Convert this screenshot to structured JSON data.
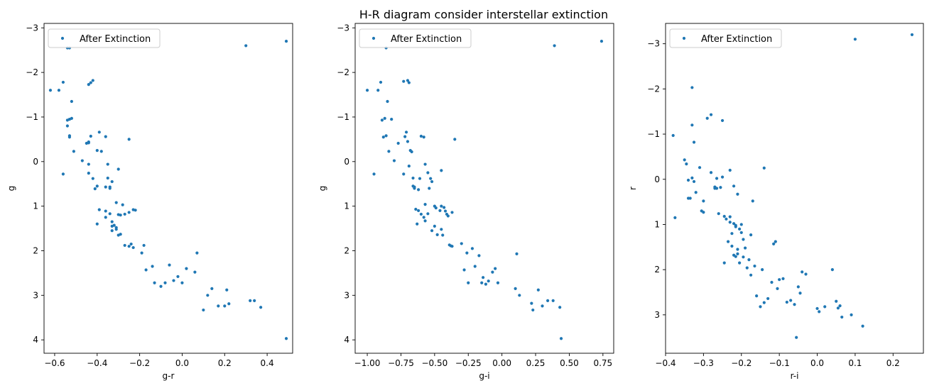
{
  "figure": {
    "title": "H-R diagram consider interstellar extinction"
  },
  "chart_data": [
    {
      "type": "scatter",
      "xlabel": "g-r",
      "ylabel": "g",
      "xlim": [
        -0.65,
        0.52
      ],
      "ylim": [
        4.3,
        -3.1
      ],
      "y_inverted": true,
      "xticks": [
        -0.6,
        -0.4,
        -0.2,
        0.0,
        0.2,
        0.4
      ],
      "xtick_labels": [
        "−0.6",
        "−0.4",
        "−0.2",
        "0.0",
        "0.2",
        "0.4"
      ],
      "yticks": [
        -3,
        -2,
        -1,
        0,
        1,
        2,
        3,
        4
      ],
      "ytick_labels": [
        "−3",
        "−2",
        "−1",
        "0",
        "1",
        "2",
        "3",
        "4"
      ],
      "legend": {
        "label": "After Extinction",
        "position": "upper left"
      },
      "color": "#1f77b4",
      "series": [
        {
          "name": "After Extinction",
          "x": [
            -0.62,
            -0.58,
            -0.56,
            -0.54,
            -0.53,
            -0.52,
            -0.54,
            -0.53,
            -0.52,
            -0.51,
            -0.56,
            -0.54,
            -0.53,
            -0.47,
            -0.45,
            -0.44,
            -0.44,
            -0.43,
            -0.44,
            -0.43,
            -0.42,
            -0.4,
            -0.39,
            -0.38,
            -0.36,
            -0.35,
            -0.34,
            -0.33,
            -0.3,
            -0.25,
            -0.44,
            -0.42,
            -0.4,
            -0.41,
            -0.4,
            -0.36,
            -0.34,
            -0.33,
            -0.31,
            -0.3,
            -0.39,
            -0.36,
            -0.35,
            -0.34,
            -0.36,
            -0.33,
            -0.32,
            -0.31,
            -0.29,
            -0.28,
            -0.27,
            -0.25,
            -0.23,
            -0.22,
            -0.33,
            -0.31,
            -0.3,
            -0.29,
            -0.27,
            -0.25,
            -0.24,
            -0.23,
            -0.19,
            -0.18,
            -0.17,
            -0.14,
            -0.13,
            -0.1,
            -0.08,
            -0.06,
            -0.04,
            -0.02,
            0.0,
            0.02,
            0.06,
            0.07,
            0.1,
            0.12,
            0.14,
            0.17,
            0.2,
            0.21,
            0.22,
            0.32,
            0.34,
            0.37,
            0.49,
            0.3,
            0.49,
            -0.53,
            -0.44
          ],
          "y": [
            -1.6,
            -1.6,
            -1.78,
            -0.93,
            -0.58,
            -0.97,
            -0.8,
            -0.55,
            -1.35,
            -0.23,
            0.28,
            -2.55,
            -0.95,
            -0.02,
            -0.41,
            0.06,
            -0.44,
            -0.57,
            -1.73,
            -1.77,
            -1.82,
            -0.25,
            -0.66,
            -0.23,
            -0.56,
            0.06,
            0.57,
            0.45,
            0.17,
            -0.5,
            0.26,
            0.38,
            0.55,
            0.61,
            1.4,
            1.11,
            1.17,
            1.35,
            0.92,
            1.19,
            1.08,
            1.25,
            0.37,
            0.6,
            0.57,
            1.45,
            1.43,
            1.48,
            1.2,
            0.97,
            1.18,
            1.14,
            1.08,
            1.09,
            1.55,
            1.52,
            1.65,
            1.63,
            1.88,
            1.9,
            1.85,
            1.93,
            2.05,
            1.88,
            2.43,
            2.35,
            2.72,
            2.8,
            2.72,
            2.32,
            2.67,
            2.58,
            2.72,
            2.4,
            2.48,
            2.05,
            3.33,
            3.0,
            2.85,
            3.24,
            3.24,
            2.88,
            3.19,
            3.12,
            3.12,
            3.27,
            3.97,
            -2.6,
            -2.7,
            -2.55,
            -0.42
          ]
        }
      ]
    },
    {
      "type": "scatter",
      "xlabel": "g-i",
      "ylabel": "g",
      "xlim": [
        -1.09,
        0.83
      ],
      "ylim": [
        4.3,
        -3.1
      ],
      "y_inverted": true,
      "xticks": [
        -1.0,
        -0.75,
        -0.5,
        -0.25,
        0.0,
        0.25,
        0.5,
        0.75
      ],
      "xtick_labels": [
        "−1.00",
        "−0.75",
        "−0.50",
        "−0.25",
        "0.00",
        "0.25",
        "0.50",
        "0.75"
      ],
      "yticks": [
        -3,
        -2,
        -1,
        0,
        1,
        2,
        3,
        4
      ],
      "ytick_labels": [
        "−3",
        "−2",
        "−1",
        "0",
        "1",
        "2",
        "3",
        "4"
      ],
      "legend": {
        "label": "After Extinction",
        "position": "upper left"
      },
      "color": "#1f77b4",
      "series": [
        {
          "name": "After Extinction",
          "x": [
            -1.0,
            -0.95,
            -0.92,
            -0.9,
            -0.89,
            -0.88,
            -0.87,
            -0.86,
            -0.85,
            -0.84,
            -0.82,
            -0.8,
            -0.77,
            -0.73,
            -0.72,
            -0.71,
            -0.7,
            -0.69,
            -0.68,
            -0.67,
            -0.66,
            -0.65,
            -0.62,
            -0.61,
            -0.58,
            -0.57,
            -0.55,
            -0.54,
            -0.53,
            -0.52,
            -0.5,
            -0.49,
            -0.48,
            -0.46,
            -0.45,
            -0.44,
            -0.43,
            -0.42,
            -0.41,
            -0.39,
            -0.38,
            -0.37,
            -0.35,
            -0.3,
            -0.28,
            -0.26,
            -0.25,
            -0.22,
            -0.2,
            -0.17,
            -0.15,
            -0.14,
            -0.12,
            -0.1,
            -0.07,
            -0.05,
            -0.03,
            0.1,
            0.11,
            0.13,
            0.22,
            0.23,
            0.27,
            0.3,
            0.34,
            0.38,
            0.43,
            0.44,
            0.39,
            0.74,
            -0.86,
            -0.73,
            -0.69,
            -0.7,
            -0.6,
            -0.55,
            -0.58,
            -0.52,
            -0.57,
            -0.6,
            -0.63,
            -0.64,
            -0.65,
            -0.66,
            -0.62,
            -0.57,
            -0.5,
            -0.45,
            -0.4,
            -0.37,
            -0.45
          ],
          "y": [
            -1.6,
            0.28,
            -1.6,
            -1.78,
            -0.93,
            -0.55,
            -0.97,
            -0.58,
            -1.35,
            -0.23,
            -0.95,
            -0.02,
            -0.41,
            0.28,
            -0.56,
            -0.66,
            -0.45,
            0.1,
            -0.25,
            -0.22,
            0.37,
            0.57,
            0.63,
            0.38,
            -0.55,
            0.06,
            0.25,
            0.6,
            0.38,
            0.45,
            1.0,
            1.04,
            1.64,
            1.1,
            1.0,
            1.65,
            1.03,
            1.11,
            1.18,
            1.87,
            1.89,
            1.14,
            -0.5,
            1.84,
            2.43,
            2.05,
            2.72,
            1.95,
            2.35,
            2.11,
            2.72,
            2.6,
            2.75,
            2.68,
            2.48,
            2.4,
            2.72,
            2.85,
            2.07,
            3.0,
            3.18,
            3.33,
            2.88,
            3.24,
            3.12,
            3.12,
            3.27,
            3.97,
            -2.6,
            -2.7,
            -2.55,
            -1.8,
            -1.77,
            -1.82,
            -0.57,
            1.17,
            1.25,
            1.55,
            1.33,
            1.18,
            1.4,
            1.07,
            0.6,
            0.55,
            1.1,
            0.96,
            1.45,
            1.52,
            1.22,
            1.9,
            0.2
          ]
        }
      ]
    },
    {
      "type": "scatter",
      "xlabel": "r-i",
      "ylabel": "r",
      "xlim": [
        -0.4,
        0.28
      ],
      "ylim": [
        3.85,
        -3.45
      ],
      "y_inverted": true,
      "xticks": [
        -0.4,
        -0.3,
        -0.2,
        -0.1,
        0.0,
        0.1,
        0.2
      ],
      "xtick_labels": [
        "−0.4",
        "−0.3",
        "−0.2",
        "−0.1",
        "0.0",
        "0.1",
        "0.2"
      ],
      "yticks": [
        -3,
        -2,
        -1,
        0,
        1,
        2,
        3
      ],
      "ytick_labels": [
        "−3",
        "−2",
        "−1",
        "0",
        "1",
        "2",
        "3"
      ],
      "legend": {
        "label": "After Extinction",
        "position": "upper left"
      },
      "color": "#1f77b4",
      "series": [
        {
          "name": "After Extinction",
          "x": [
            -0.38,
            -0.375,
            -0.35,
            -0.345,
            -0.34,
            -0.335,
            -0.33,
            -0.325,
            -0.32,
            -0.31,
            -0.305,
            -0.33,
            -0.33,
            -0.325,
            -0.3,
            -0.29,
            -0.28,
            -0.27,
            -0.265,
            -0.26,
            -0.25,
            -0.24,
            -0.23,
            -0.225,
            -0.22,
            -0.215,
            -0.21,
            -0.205,
            -0.2,
            -0.195,
            -0.19,
            -0.18,
            -0.175,
            -0.17,
            -0.165,
            -0.16,
            -0.15,
            -0.145,
            -0.14,
            -0.13,
            -0.12,
            -0.115,
            -0.11,
            -0.105,
            -0.1,
            -0.09,
            -0.08,
            -0.07,
            -0.06,
            -0.055,
            -0.05,
            -0.045,
            -0.04,
            -0.03,
            0.0,
            0.005,
            0.02,
            0.04,
            0.05,
            0.055,
            0.06,
            0.065,
            0.09,
            0.1,
            0.12,
            0.25,
            -0.34,
            -0.3,
            -0.27,
            -0.28,
            -0.255,
            -0.245,
            -0.22,
            -0.215,
            -0.23,
            -0.245,
            -0.22,
            -0.225,
            -0.23,
            -0.21,
            -0.2,
            -0.195,
            -0.25,
            -0.235,
            -0.265,
            -0.205,
            -0.215,
            -0.21,
            -0.175,
            -0.185,
            -0.14
          ],
          "y": [
            -0.97,
            0.85,
            -0.43,
            -0.34,
            0.02,
            0.42,
            -1.2,
            -0.82,
            0.29,
            -0.26,
            0.7,
            -2.03,
            -0.03,
            0.05,
            0.48,
            -1.35,
            -1.43,
            0.17,
            0.2,
            0.76,
            -1.3,
            0.88,
            -0.2,
            1.48,
            0.98,
            1.02,
            1.55,
            1.1,
            1.18,
            1.33,
            1.52,
            1.78,
            1.23,
            0.48,
            1.92,
            2.58,
            2.82,
            2.0,
            2.73,
            2.64,
            2.28,
            1.43,
            1.38,
            2.42,
            2.22,
            2.2,
            2.72,
            2.68,
            2.77,
            3.5,
            2.38,
            2.52,
            2.05,
            2.1,
            2.86,
            2.93,
            2.82,
            2.0,
            2.7,
            2.85,
            2.8,
            3.05,
            3.0,
            -3.1,
            3.25,
            -3.2,
            0.42,
            0.73,
            0.2,
            -0.15,
            0.18,
            0.82,
            0.15,
            1.05,
            0.95,
            1.85,
            1.68,
            1.2,
            0.83,
            0.33,
            1.0,
            1.72,
            -0.05,
            1.38,
            -0.02,
            1.85,
            1.71,
            1.65,
            2.12,
            1.96,
            -0.25
          ]
        }
      ]
    }
  ]
}
